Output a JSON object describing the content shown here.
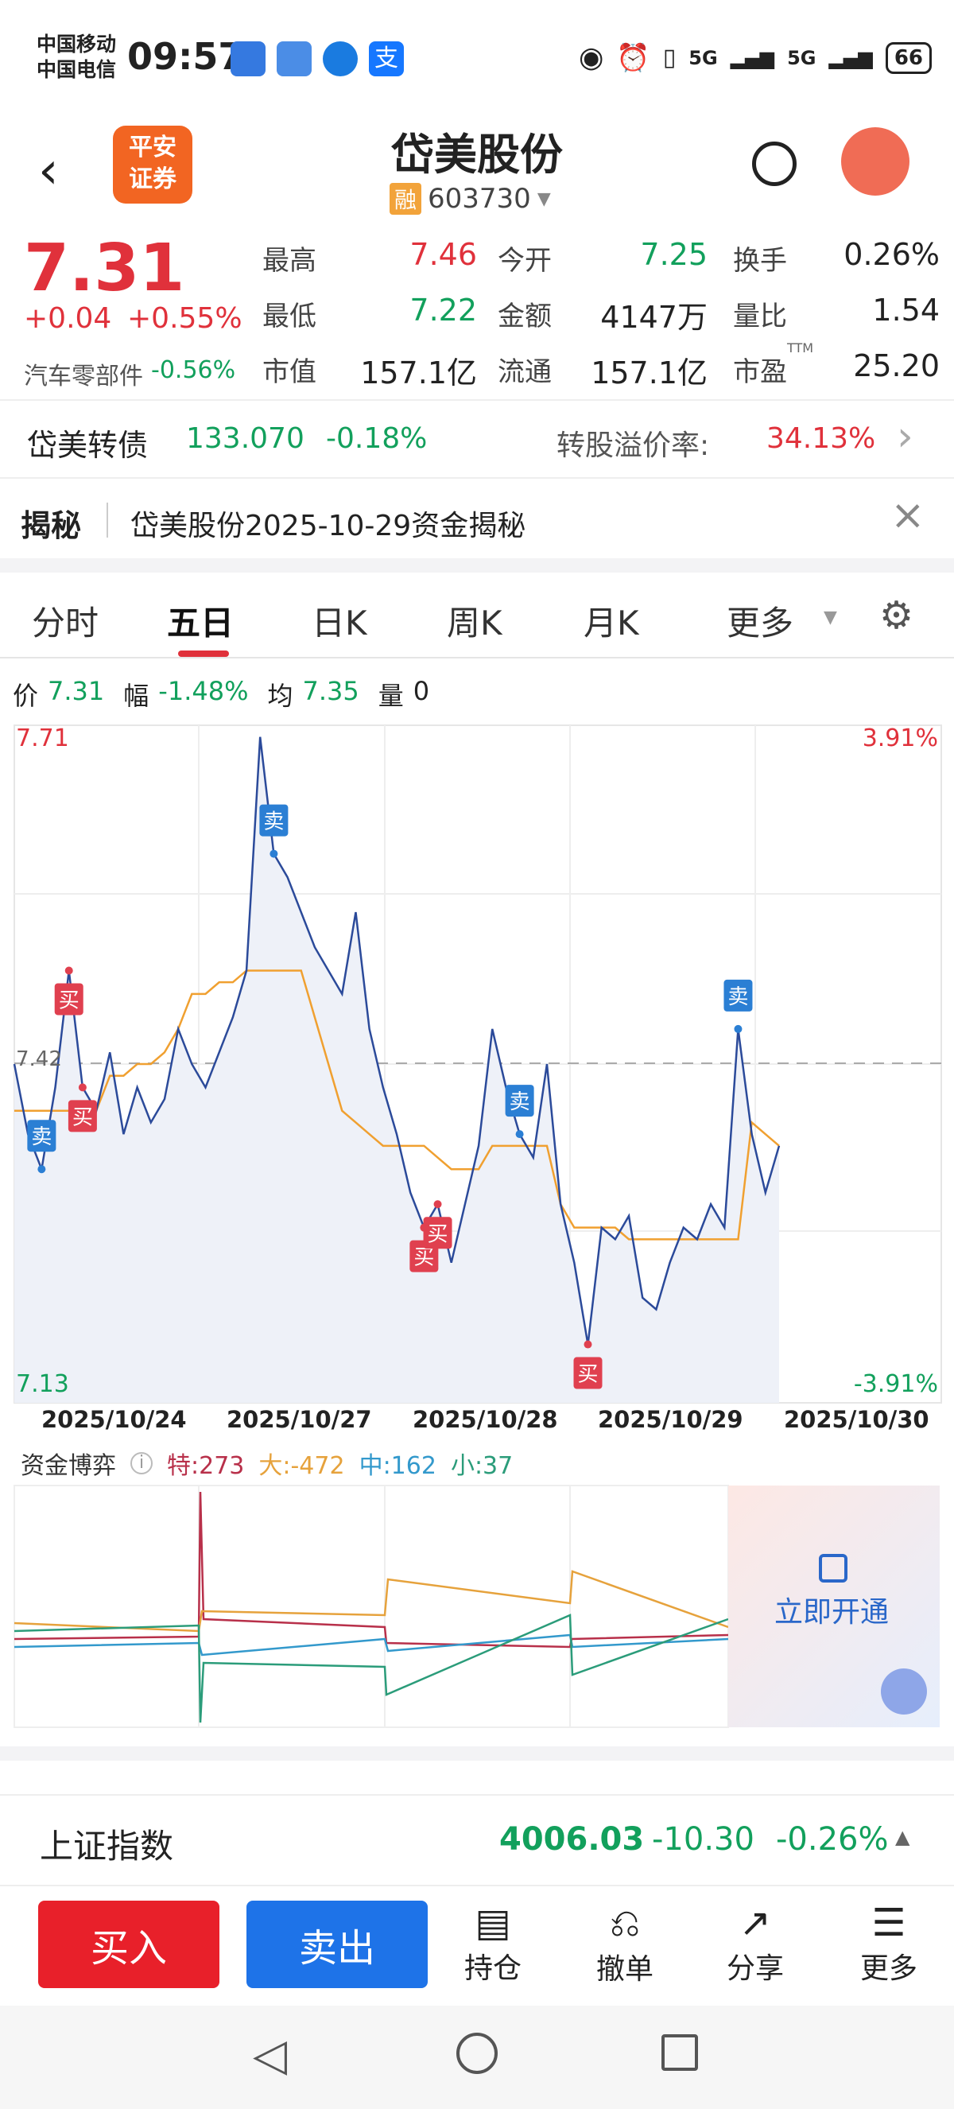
{
  "status_bar": {
    "carrier1": "中国移动",
    "carrier2": "中国电信",
    "time": "09:57",
    "signal1": "5G",
    "signal2": "5G",
    "battery": "66"
  },
  "header": {
    "broker_logo_line1": "平安",
    "broker_logo_line2": "证券",
    "stock_name": "岱美股份",
    "margin_badge": "融",
    "stock_code": "603730"
  },
  "quote": {
    "price": "7.31",
    "change": "+0.04",
    "change_pct": "+0.55%",
    "sector_name": "汽车零部件",
    "sector_change": "-0.56%",
    "fields": [
      {
        "label": "最高",
        "value": "7.46",
        "color": "red"
      },
      {
        "label": "今开",
        "value": "7.25",
        "color": "green"
      },
      {
        "label": "换手",
        "value": "0.26%",
        "color": "black"
      },
      {
        "label": "最低",
        "value": "7.22",
        "color": "green"
      },
      {
        "label": "金额",
        "value": "4147万",
        "color": "black"
      },
      {
        "label": "量比",
        "value": "1.54",
        "color": "black"
      },
      {
        "label": "市值",
        "value": "157.1亿",
        "color": "black"
      },
      {
        "label": "流通",
        "value": "157.1亿",
        "color": "black"
      },
      {
        "label": "市盈",
        "value": "25.20",
        "color": "black"
      }
    ],
    "ttm": "TTM"
  },
  "bond": {
    "name": "岱美转债",
    "price": "133.070",
    "change_pct": "-0.18%",
    "premium_label": "转股溢价率:",
    "premium_value": "34.13%"
  },
  "reveal": {
    "title": "揭秘",
    "text": "岱美股份2025-10-29资金揭秘"
  },
  "tabs": [
    "分时",
    "五日",
    "日K",
    "周K",
    "月K",
    "更多"
  ],
  "chart_info": {
    "price_label": "价",
    "price": "7.31",
    "amp_label": "幅",
    "amp": "-1.48%",
    "avg_label": "均",
    "avg": "7.35",
    "vol_label": "量",
    "vol": "0"
  },
  "chart_data": {
    "type": "line",
    "ylim": [
      7.13,
      7.71
    ],
    "y_top": "7.71",
    "y_bottom": "7.13",
    "pct_top": "3.91%",
    "pct_bottom": "-3.91%",
    "ref_label": "7.42",
    "x_labels": [
      "2025/10/24",
      "2025/10/27",
      "2025/10/28",
      "2025/10/29",
      "2025/10/30"
    ],
    "series": [
      {
        "name": "价",
        "values": [
          7.42,
          7.36,
          7.33,
          7.4,
          7.5,
          7.4,
          7.38,
          7.43,
          7.36,
          7.4,
          7.37,
          7.39,
          7.45,
          7.42,
          7.4,
          7.43,
          7.46,
          7.5,
          7.7,
          7.6,
          7.58,
          7.55,
          7.52,
          7.5,
          7.48,
          7.55,
          7.45,
          7.4,
          7.36,
          7.31,
          7.28,
          7.3,
          7.25,
          7.3,
          7.35,
          7.45,
          7.4,
          7.36,
          7.34,
          7.42,
          7.3,
          7.25,
          7.18,
          7.28,
          7.27,
          7.29,
          7.22,
          7.21,
          7.25,
          7.28,
          7.27,
          7.3,
          7.28,
          7.45,
          7.36,
          7.31,
          7.35
        ]
      },
      {
        "name": "均",
        "values": [
          7.38,
          7.38,
          7.38,
          7.38,
          7.38,
          7.38,
          7.38,
          7.41,
          7.41,
          7.42,
          7.42,
          7.43,
          7.45,
          7.48,
          7.48,
          7.49,
          7.49,
          7.5,
          7.5,
          7.5,
          7.5,
          7.5,
          7.46,
          7.42,
          7.38,
          7.37,
          7.36,
          7.35,
          7.35,
          7.35,
          7.35,
          7.34,
          7.33,
          7.33,
          7.33,
          7.35,
          7.35,
          7.35,
          7.35,
          7.35,
          7.3,
          7.28,
          7.28,
          7.28,
          7.28,
          7.27,
          7.27,
          7.27,
          7.27,
          7.27,
          7.27,
          7.27,
          7.27,
          7.27,
          7.37,
          7.36,
          7.35
        ]
      }
    ],
    "markers": [
      {
        "label": "卖",
        "type": "sell"
      },
      {
        "label": "买",
        "type": "buy"
      },
      {
        "label": "买",
        "type": "buy"
      },
      {
        "label": "卖",
        "type": "sell"
      },
      {
        "label": "买",
        "type": "buy"
      },
      {
        "label": "买",
        "type": "buy"
      },
      {
        "label": "卖",
        "type": "sell"
      },
      {
        "label": "买",
        "type": "buy"
      },
      {
        "label": "卖",
        "type": "sell"
      }
    ]
  },
  "fund": {
    "title": "资金博弈",
    "te": "特:273",
    "da": "大:-472",
    "zhong": "中:162",
    "xiao": "小:37",
    "unlock": "立即开通",
    "colors": {
      "te": "#b8304a",
      "da": "#e6a23c",
      "zhong": "#3399cc",
      "xiao": "#2b9c7a"
    }
  },
  "index_bar": {
    "name": "上证指数",
    "value": "4006.03",
    "change": "-10.30",
    "pct": "-0.26%"
  },
  "toolbar": {
    "buy": "买入",
    "sell": "卖出",
    "hold": "持仓",
    "cancel": "撤单",
    "share": "分享",
    "more": "更多"
  },
  "colors": {
    "up": "#e0313b",
    "down": "#12a05c",
    "buy_btn": "#e8202a",
    "sell_btn": "#1e73e8"
  }
}
